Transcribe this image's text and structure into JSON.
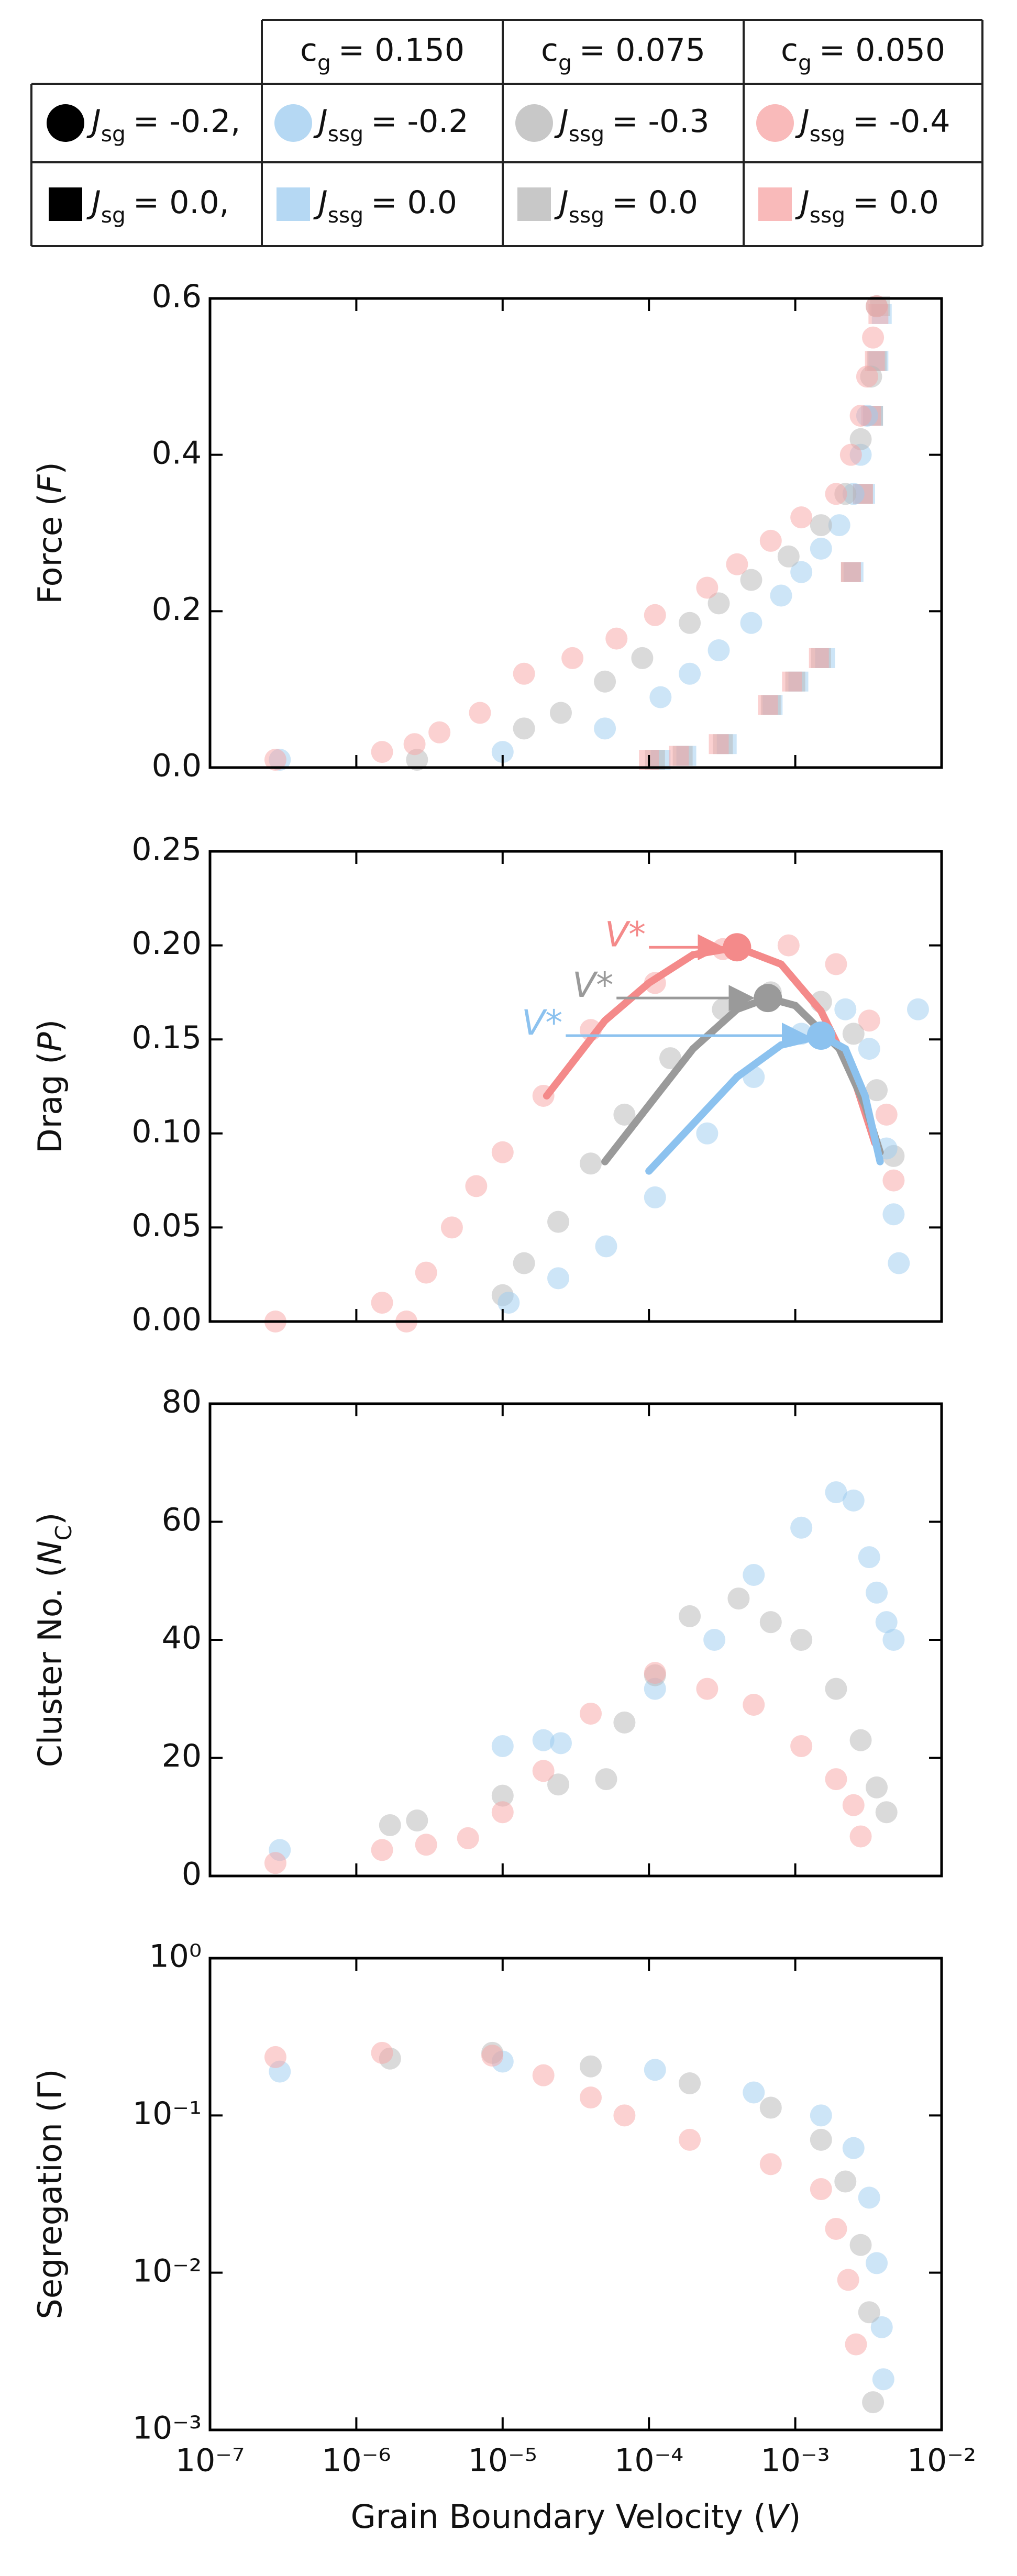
{
  "legend": {
    "header": [
      {
        "var": "c",
        "sub": "g",
        "rest": "= 0.150"
      },
      {
        "var": "c",
        "sub": "g",
        "rest": "= 0.075"
      },
      {
        "var": "c",
        "sub": "g",
        "rest": "= 0.050"
      }
    ],
    "rows": [
      {
        "marker": "circle",
        "key": {
          "var": "J",
          "sub": "sg",
          "rest": "= -0.2,"
        },
        "entries": [
          {
            "color": "#9ccbef",
            "var": "J",
            "sub": "ssg",
            "rest": "= -0.2"
          },
          {
            "color": "#b5b5b5",
            "var": "J",
            "sub": "ssg",
            "rest": "= -0.3"
          },
          {
            "color": "#f7a3a3",
            "var": "J",
            "sub": "ssg",
            "rest": "= -0.4"
          }
        ]
      },
      {
        "marker": "square",
        "key": {
          "var": "J",
          "sub": "sg",
          "rest": "= 0.0,"
        },
        "entries": [
          {
            "color": "#9ccbef",
            "var": "J",
            "sub": "ssg",
            "rest": "= 0.0"
          },
          {
            "color": "#b5b5b5",
            "var": "J",
            "sub": "ssg",
            "rest": "= 0.0"
          },
          {
            "color": "#f7a3a3",
            "var": "J",
            "sub": "ssg",
            "rest": "= 0.0"
          }
        ]
      }
    ]
  },
  "chart_data": [
    {
      "type": "scatter",
      "xlog": true,
      "xlim": [
        1e-07,
        0.01
      ],
      "xticks": [
        1e-07,
        1e-06,
        1e-05,
        0.0001,
        0.001,
        0.01
      ],
      "ylim": [
        0,
        0.6
      ],
      "yticks": [
        {
          "value": 0,
          "label": "0.0"
        },
        {
          "value": 0.2,
          "label": "0.2"
        },
        {
          "value": 0.4,
          "label": "0.4"
        },
        {
          "value": 0.6,
          "label": "0.6"
        }
      ],
      "ylabel": {
        "pre": "Force (",
        "var": "F",
        "post": ")"
      },
      "series": [
        {
          "color": "#9ccbef",
          "marker": "square",
          "x": [
            0.00012,
            0.00018,
            0.00034,
            0.0007,
            0.00105,
            0.0016,
            0.0025,
            0.003,
            0.0034,
            0.0037,
            0.0039
          ],
          "values": [
            0.01,
            0.015,
            0.03,
            0.08,
            0.11,
            0.14,
            0.25,
            0.35,
            0.45,
            0.52,
            0.58
          ]
        },
        {
          "color": "#b5b5b5",
          "marker": "square",
          "x": [
            0.00011,
            0.00017,
            0.00032,
            0.00068,
            0.001,
            0.0015,
            0.0024,
            0.0029,
            0.0034,
            0.0036,
            0.0038
          ],
          "values": [
            0.01,
            0.015,
            0.03,
            0.08,
            0.11,
            0.14,
            0.25,
            0.35,
            0.45,
            0.52,
            0.59
          ]
        },
        {
          "color": "#f7a3a3",
          "marker": "square",
          "x": [
            0.0001,
            0.00016,
            0.0003,
            0.00065,
            0.00095,
            0.00145,
            0.0024,
            0.0029,
            0.0033,
            0.0035,
            0.0037
          ],
          "values": [
            0.01,
            0.015,
            0.03,
            0.08,
            0.11,
            0.14,
            0.25,
            0.35,
            0.45,
            0.52,
            0.58
          ]
        },
        {
          "color": "#9ccbef",
          "marker": "circle",
          "x": [
            3e-07,
            1e-05,
            5e-05,
            0.00012,
            0.00019,
            0.0003,
            0.0005,
            0.0008,
            0.0011,
            0.0015,
            0.002,
            0.0025,
            0.0028,
            0.0031
          ],
          "values": [
            0.01,
            0.02,
            0.05,
            0.09,
            0.12,
            0.15,
            0.185,
            0.22,
            0.25,
            0.28,
            0.31,
            0.35,
            0.4,
            0.45
          ]
        },
        {
          "color": "#b5b5b5",
          "marker": "circle",
          "x": [
            2.6e-06,
            1.4e-05,
            2.5e-05,
            5e-05,
            9e-05,
            0.00019,
            0.0003,
            0.0005,
            0.0009,
            0.0015,
            0.0022,
            0.0028,
            0.0033,
            0.0036
          ],
          "values": [
            0.01,
            0.05,
            0.07,
            0.11,
            0.14,
            0.185,
            0.21,
            0.24,
            0.27,
            0.31,
            0.35,
            0.42,
            0.5,
            0.59
          ]
        },
        {
          "color": "#f7a3a3",
          "marker": "circle",
          "x": [
            2.8e-07,
            1.5e-06,
            2.5e-06,
            3.7e-06,
            7e-06,
            1.4e-05,
            3e-05,
            6e-05,
            0.00011,
            0.00025,
            0.0004,
            0.00068,
            0.0011,
            0.0019,
            0.0024,
            0.0028,
            0.0031,
            0.0034,
            0.0036
          ],
          "values": [
            0.01,
            0.02,
            0.03,
            0.045,
            0.07,
            0.12,
            0.14,
            0.165,
            0.195,
            0.23,
            0.26,
            0.29,
            0.32,
            0.35,
            0.4,
            0.45,
            0.5,
            0.55,
            0.59
          ]
        }
      ]
    },
    {
      "type": "scatter",
      "xlog": true,
      "xlim": [
        1e-07,
        0.01
      ],
      "xticks": [
        1e-07,
        1e-06,
        1e-05,
        0.0001,
        0.001,
        0.01
      ],
      "ylim": [
        0,
        0.25
      ],
      "yticks": [
        {
          "value": 0,
          "label": "0.00"
        },
        {
          "value": 0.05,
          "label": "0.05"
        },
        {
          "value": 0.1,
          "label": "0.10"
        },
        {
          "value": 0.15,
          "label": "0.15"
        },
        {
          "value": 0.2,
          "label": "0.20"
        },
        {
          "value": 0.25,
          "label": "0.25"
        }
      ],
      "ylabel": {
        "pre": "Drag (",
        "var": "P",
        "post": ")"
      },
      "series": [
        {
          "color": "#f7a3a3",
          "marker": "circle",
          "x": [
            2.8e-07,
            1.5e-06,
            2.2e-06,
            3e-06,
            4.5e-06,
            6.6e-06,
            1e-05,
            1.9e-05,
            4e-05,
            0.00011,
            0.00032,
            0.0009,
            0.0019,
            0.0032,
            0.0042,
            0.0047
          ],
          "values": [
            0.0,
            0.01,
            0.0,
            0.026,
            0.05,
            0.072,
            0.09,
            0.12,
            0.155,
            0.18,
            0.198,
            0.2,
            0.19,
            0.16,
            0.11,
            0.075
          ]
        },
        {
          "color": "#b5b5b5",
          "marker": "circle",
          "x": [
            1e-05,
            1.4e-05,
            2.4e-05,
            4e-05,
            6.8e-05,
            0.00014,
            0.00032,
            0.00068,
            0.0015,
            0.0025,
            0.0036,
            0.0047
          ],
          "values": [
            0.014,
            0.031,
            0.053,
            0.084,
            0.11,
            0.14,
            0.166,
            0.175,
            0.17,
            0.153,
            0.123,
            0.088
          ]
        },
        {
          "color": "#9ccbef",
          "marker": "circle",
          "x": [
            1.1e-05,
            2.4e-05,
            5.1e-05,
            0.00011,
            0.00025,
            0.00052,
            0.0011,
            0.0022,
            0.0032,
            0.0042,
            0.0047,
            0.0051,
            0.0069
          ],
          "values": [
            0.01,
            0.023,
            0.04,
            0.066,
            0.1,
            0.13,
            0.153,
            0.166,
            0.145,
            0.092,
            0.057,
            0.031,
            0.166
          ]
        }
      ],
      "curves": [
        {
          "color": "#f48a8a",
          "x": [
            2e-05,
            5e-05,
            0.0001,
            0.0002,
            0.0004,
            0.0008,
            0.0015,
            0.0025,
            0.0035
          ],
          "values": [
            0.12,
            0.16,
            0.18,
            0.195,
            0.199,
            0.19,
            0.165,
            0.13,
            0.095
          ]
        },
        {
          "color": "#9a9a9a",
          "x": [
            5e-05,
            0.0001,
            0.0002,
            0.0004,
            0.00065,
            0.001,
            0.002,
            0.003,
            0.0038
          ],
          "values": [
            0.085,
            0.115,
            0.145,
            0.166,
            0.172,
            0.168,
            0.145,
            0.115,
            0.09
          ]
        },
        {
          "color": "#8cc2ef",
          "x": [
            0.0001,
            0.0002,
            0.0004,
            0.0008,
            0.0015,
            0.0022,
            0.003,
            0.0038
          ],
          "values": [
            0.08,
            0.105,
            0.13,
            0.147,
            0.152,
            0.145,
            0.12,
            0.085
          ]
        }
      ],
      "peaks": [
        {
          "color": "#f48a8a",
          "x": 0.0004,
          "value": 0.199
        },
        {
          "color": "#9a9a9a",
          "x": 0.00065,
          "value": 0.172
        },
        {
          "color": "#8cc2ef",
          "x": 0.0015,
          "value": 0.152
        }
      ],
      "annotations": [
        {
          "text": "V*",
          "color": "#f48a8a",
          "x_start": 0.0001
        },
        {
          "text": "V*",
          "color": "#9a9a9a",
          "x_start": 6e-05
        },
        {
          "text": "V*",
          "color": "#8cc2ef",
          "x_start": 2.7e-05
        }
      ]
    },
    {
      "type": "scatter",
      "xlog": true,
      "xlim": [
        1e-07,
        0.01
      ],
      "xticks": [
        1e-07,
        1e-06,
        1e-05,
        0.0001,
        0.001,
        0.01
      ],
      "ylim": [
        0,
        80
      ],
      "yticks": [
        0,
        20,
        40,
        60,
        80
      ],
      "ylabel": {
        "pre": "Cluster No. (",
        "var": "N",
        "sub": "C",
        "post": ")"
      },
      "series": [
        {
          "color": "#9ccbef",
          "marker": "circle",
          "x": [
            3e-07,
            1e-05,
            1.9e-05,
            2.5e-05,
            0.00011,
            0.00028,
            0.00052,
            0.0011,
            0.0019,
            0.0025,
            0.0032,
            0.0036,
            0.0042,
            0.0047
          ],
          "values": [
            4.4,
            22,
            23,
            22.5,
            31.7,
            40,
            51,
            59,
            65,
            63.6,
            54,
            48,
            43,
            40
          ]
        },
        {
          "color": "#b5b5b5",
          "marker": "circle",
          "x": [
            1.7e-06,
            2.6e-06,
            1e-05,
            2.4e-05,
            5.1e-05,
            6.8e-05,
            0.00011,
            0.00019,
            0.00041,
            0.00068,
            0.0011,
            0.0019,
            0.0028,
            0.0036,
            0.0042
          ],
          "values": [
            8.6,
            9.4,
            13.6,
            15.5,
            16.4,
            26,
            34,
            44,
            47,
            43,
            40,
            31.7,
            23,
            15,
            10.8
          ]
        },
        {
          "color": "#f7a3a3",
          "marker": "circle",
          "x": [
            2.8e-07,
            1.5e-06,
            3e-06,
            5.8e-06,
            1e-05,
            1.9e-05,
            4e-05,
            0.00011,
            0.00025,
            0.00052,
            0.0011,
            0.0019,
            0.0025,
            0.0028
          ],
          "values": [
            2.2,
            4.4,
            5.3,
            6.4,
            10.8,
            17.8,
            27.5,
            34.4,
            31.7,
            29,
            22,
            16.4,
            12,
            6.7
          ]
        }
      ]
    },
    {
      "type": "scatter",
      "xlog": true,
      "ylog": true,
      "xlim": [
        1e-07,
        0.01
      ],
      "xticks": [
        {
          "value": 1e-07,
          "label": "10⁻⁷"
        },
        {
          "value": 1e-06,
          "label": "10⁻⁶"
        },
        {
          "value": 1e-05,
          "label": "10⁻⁵"
        },
        {
          "value": 0.0001,
          "label": "10⁻⁴"
        },
        {
          "value": 0.001,
          "label": "10⁻³"
        },
        {
          "value": 0.01,
          "label": "10⁻²"
        }
      ],
      "ylim": [
        0.001,
        1
      ],
      "yticks": [
        {
          "value": 0.001,
          "label": "10⁻³"
        },
        {
          "value": 0.01,
          "label": "10⁻²"
        },
        {
          "value": 0.1,
          "label": "10⁻¹"
        },
        {
          "value": 1,
          "label": "10⁰"
        }
      ],
      "ylabel": {
        "pre": "Segregation (Γ)"
      },
      "xlabel": {
        "pre": "Grain Boundary Velocity (",
        "var": "V",
        "post": ")"
      },
      "series": [
        {
          "color": "#9ccbef",
          "marker": "circle",
          "x": [
            3e-07,
            1e-05,
            0.00011,
            0.00052,
            0.0015,
            0.0025,
            0.0032,
            0.0036,
            0.0039,
            0.004
          ],
          "values": [
            0.19,
            0.22,
            0.195,
            0.14,
            0.1,
            0.062,
            0.03,
            0.0115,
            0.0045,
            0.0021
          ]
        },
        {
          "color": "#b5b5b5",
          "marker": "circle",
          "x": [
            1.7e-06,
            8.5e-06,
            4e-05,
            0.00019,
            0.00068,
            0.0015,
            0.0022,
            0.0028,
            0.0032,
            0.0034
          ],
          "values": [
            0.23,
            0.25,
            0.205,
            0.16,
            0.112,
            0.07,
            0.038,
            0.015,
            0.0056,
            0.0015
          ]
        },
        {
          "color": "#f7a3a3",
          "marker": "circle",
          "x": [
            2.8e-07,
            1.5e-06,
            8.5e-06,
            1.9e-05,
            4e-05,
            6.8e-05,
            0.00019,
            0.00068,
            0.0015,
            0.0019,
            0.0023,
            0.0026
          ],
          "values": [
            0.235,
            0.25,
            0.24,
            0.18,
            0.13,
            0.1,
            0.07,
            0.049,
            0.034,
            0.019,
            0.009,
            0.0035
          ]
        }
      ]
    }
  ]
}
